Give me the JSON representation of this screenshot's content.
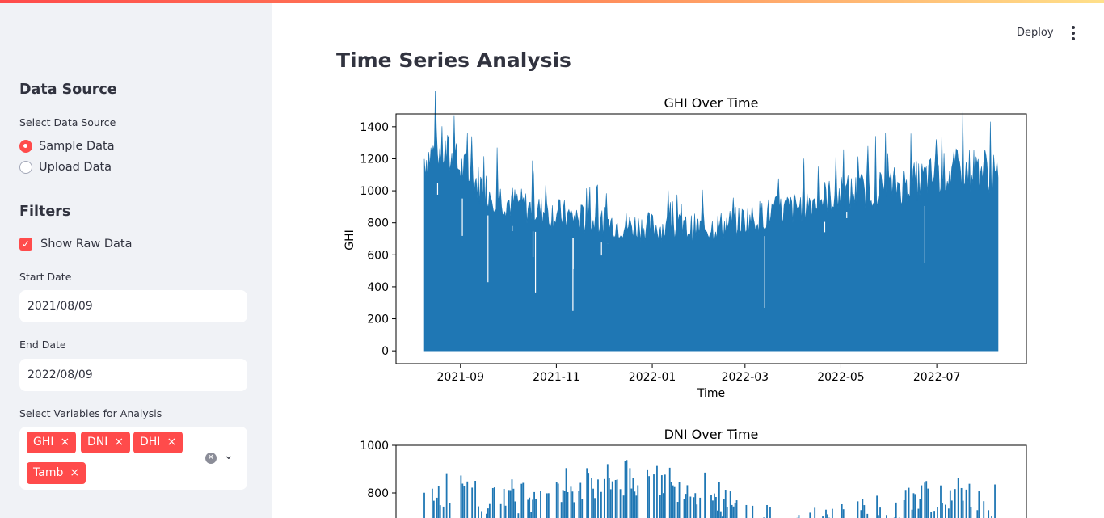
{
  "sidebar": {
    "data_source_heading": "Data Source",
    "select_source_label": "Select Data Source",
    "sources": [
      "Sample Data",
      "Upload Data"
    ],
    "selected_source_index": 0,
    "filters_heading": "Filters",
    "show_raw_label": "Show Raw Data",
    "show_raw_checked": true,
    "start_date_label": "Start Date",
    "start_date_value": "2021/08/09",
    "end_date_label": "End Date",
    "end_date_value": "2022/08/09",
    "variables_label": "Select Variables for Analysis",
    "variables": [
      "GHI",
      "DNI",
      "DHI",
      "Tamb"
    ]
  },
  "header": {
    "deploy_label": "Deploy"
  },
  "main": {
    "title": "Time Series Analysis"
  },
  "accent_color": "#ff4b4b",
  "chart_data": [
    {
      "type": "area",
      "title": "GHI Over Time",
      "xlabel": "Time",
      "ylabel": "GHI",
      "x_ticks": [
        "2021-09",
        "2021-11",
        "2022-01",
        "2022-03",
        "2022-05",
        "2022-07"
      ],
      "y_ticks": [
        0,
        200,
        400,
        600,
        800,
        1000,
        1200,
        1400
      ],
      "xlim": [
        "2021-07-22",
        "2022-08-27"
      ],
      "ylim": [
        -80,
        1480
      ],
      "series_color": "#1f77b4",
      "envelope": {
        "x": [
          "2021-08-09",
          "2021-08-20",
          "2021-09-01",
          "2021-09-15",
          "2021-10-01",
          "2021-10-15",
          "2021-11-01",
          "2021-11-15",
          "2021-12-01",
          "2021-12-15",
          "2022-01-01",
          "2022-01-15",
          "2022-02-01",
          "2022-02-15",
          "2022-03-01",
          "2022-03-15",
          "2022-04-01",
          "2022-04-15",
          "2022-05-01",
          "2022-05-15",
          "2022-06-01",
          "2022-06-15",
          "2022-07-01",
          "2022-07-15",
          "2022-08-01",
          "2022-08-09"
        ],
        "daily_max": [
          1350,
          1410,
          1280,
          1150,
          1050,
          1000,
          960,
          930,
          900,
          880,
          870,
          860,
          860,
          880,
          920,
          960,
          1000,
          1060,
          1100,
          1120,
          1150,
          1180,
          1230,
          1270,
          1280,
          1200
        ]
      }
    },
    {
      "type": "area",
      "title": "DNI Over Time",
      "y_ticks": [
        800,
        1000
      ],
      "ylim": [
        0,
        1000
      ],
      "series_color": "#1f77b4",
      "envelope": {
        "x": [
          "2021-08-09",
          "2021-09-01",
          "2021-10-01",
          "2021-11-01",
          "2021-12-01",
          "2022-01-01",
          "2022-02-01",
          "2022-03-01",
          "2022-04-01",
          "2022-05-01",
          "2022-06-01",
          "2022-07-01",
          "2022-08-09"
        ],
        "daily_max": [
          900,
          880,
          860,
          900,
          930,
          950,
          900,
          780,
          720,
          760,
          800,
          880,
          840
        ]
      }
    }
  ]
}
